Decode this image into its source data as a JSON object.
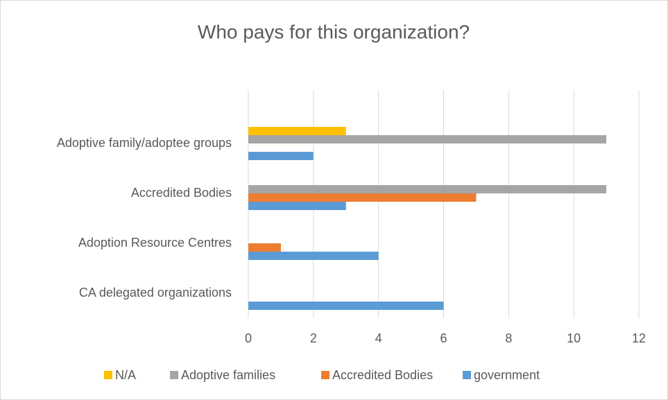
{
  "chart_data": {
    "type": "bar",
    "orientation": "horizontal",
    "title": "Who pays for this organization?",
    "categories": [
      "CA delegated organizations",
      "Adoption Resource Centres",
      "Accredited Bodies",
      "Adoptive family/adoptee groups"
    ],
    "series": [
      {
        "name": "N/A",
        "color": "#ffc000",
        "values": [
          0,
          0,
          0,
          3
        ]
      },
      {
        "name": "Adoptive families",
        "color": "#a5a5a5",
        "values": [
          0,
          0,
          11,
          11
        ]
      },
      {
        "name": "Accredited Bodies",
        "color": "#ed7d31",
        "values": [
          0,
          1,
          7,
          0
        ]
      },
      {
        "name": "government",
        "color": "#5b9bd5",
        "values": [
          6,
          4,
          3,
          2
        ]
      }
    ],
    "xlim": [
      0,
      12
    ],
    "xticks": [
      0,
      2,
      4,
      6,
      8,
      10,
      12
    ],
    "grid": true,
    "legend": "bottom"
  }
}
